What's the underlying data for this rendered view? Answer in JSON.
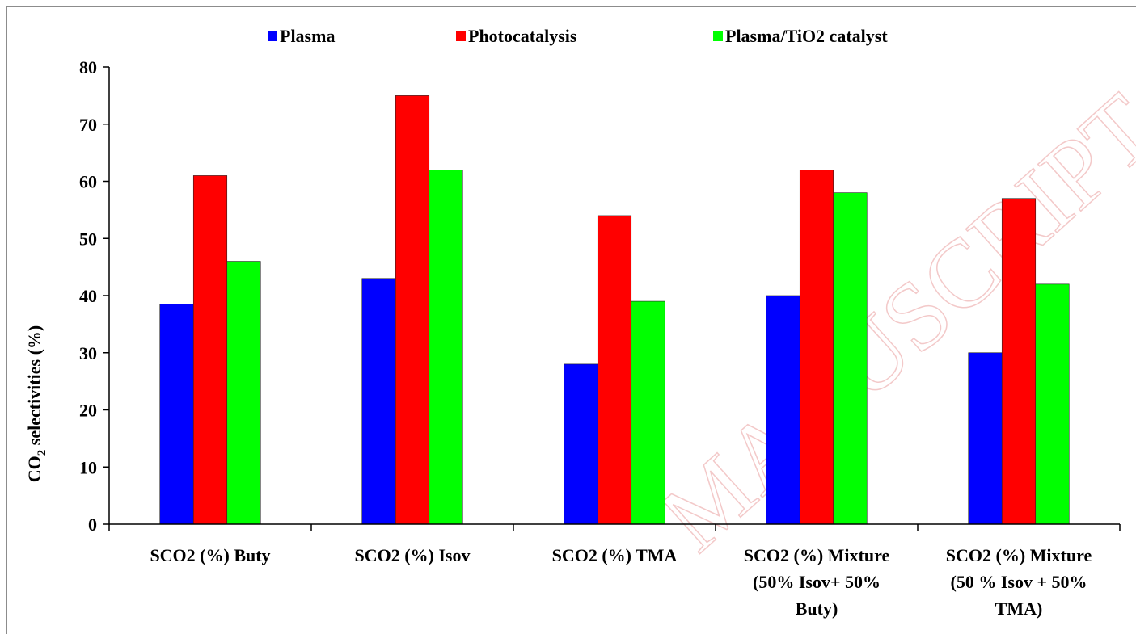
{
  "chart_data": {
    "type": "bar",
    "title": "",
    "xlabel": "",
    "ylabel": {
      "main": "CO",
      "subscript": "2",
      "rest": " selectivities (%)"
    },
    "ylim": [
      0,
      80
    ],
    "yticks": [
      0,
      10,
      20,
      30,
      40,
      50,
      60,
      70,
      80
    ],
    "grid": false,
    "legend_position": "top",
    "categories": [
      [
        "SCO2 (%) Buty"
      ],
      [
        "SCO2 (%) Isov"
      ],
      [
        "SCO2 (%) TMA"
      ],
      [
        "SCO2 (%) Mixture",
        "(50% Isov+ 50%",
        "Buty)"
      ],
      [
        "SCO2 (%) Mixture",
        "(50 % Isov + 50%",
        "TMA)"
      ]
    ],
    "series": [
      {
        "name": "Plasma",
        "color": "#0000ff",
        "values": [
          38.5,
          43,
          28,
          40,
          30
        ]
      },
      {
        "name": "Photocatalysis",
        "color": "#ff0000",
        "values": [
          61,
          75,
          54,
          62,
          57
        ]
      },
      {
        "name": "Plasma/TiO2 catalyst",
        "color": "#00ff00",
        "values": [
          46,
          62,
          39,
          58,
          42
        ]
      }
    ]
  },
  "watermark": "MANUSCRIPT"
}
